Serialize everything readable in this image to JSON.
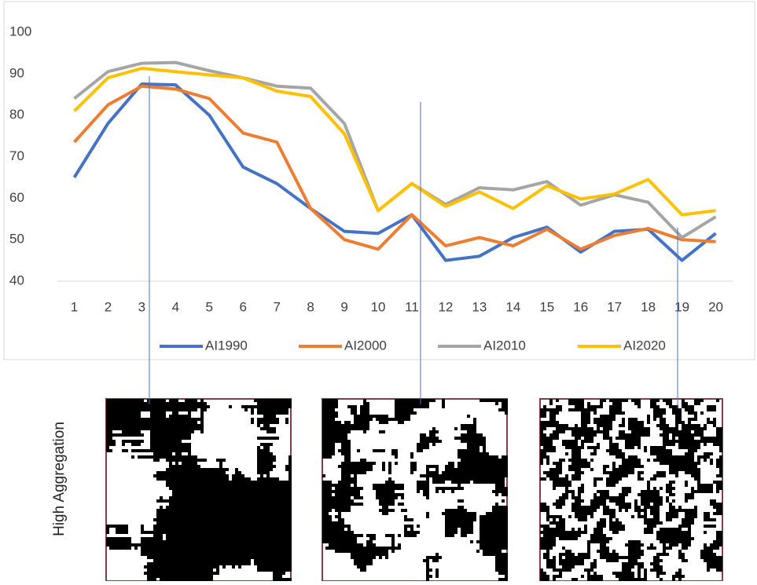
{
  "chart_data": {
    "type": "line",
    "categories": [
      "1",
      "2",
      "3",
      "4",
      "5",
      "6",
      "7",
      "8",
      "9",
      "10",
      "11",
      "12",
      "13",
      "14",
      "15",
      "16",
      "17",
      "18",
      "19",
      "20"
    ],
    "series": [
      {
        "name": "AI1990",
        "color": "#4472c4",
        "values": [
          65,
          78,
          87.5,
          87.3,
          80,
          67.5,
          63.5,
          57.5,
          52,
          51.5,
          56,
          45,
          46,
          50.5,
          53,
          47,
          52,
          52.5,
          45,
          51.5
        ]
      },
      {
        "name": "AI2000",
        "color": "#ed7d31",
        "values": [
          73.5,
          82.5,
          87,
          86.3,
          84,
          75.7,
          73.5,
          57.5,
          50,
          47.7,
          56,
          48.5,
          50.5,
          48.5,
          52.5,
          47.7,
          51,
          52.7,
          50,
          49.5
        ]
      },
      {
        "name": "AI2010",
        "color": "#a5a5a5",
        "values": [
          84,
          90.5,
          92.5,
          92.7,
          90.7,
          89,
          87,
          86.5,
          78,
          57,
          63.5,
          58.5,
          62.5,
          62,
          64,
          58.3,
          60.8,
          59,
          50.5,
          55.5
        ]
      },
      {
        "name": "AI2020",
        "color": "#ffc000",
        "values": [
          81,
          89,
          91.3,
          90.5,
          89.7,
          89,
          85.8,
          84.5,
          75.5,
          57,
          63.5,
          58,
          61.5,
          57.5,
          63,
          59.8,
          61,
          64.5,
          56,
          57
        ]
      }
    ],
    "ylim": [
      40,
      100
    ],
    "yticks": [
      40,
      50,
      60,
      70,
      80,
      90,
      100
    ],
    "legend": "bottom"
  },
  "panel": {
    "label": "High Aggregation"
  }
}
